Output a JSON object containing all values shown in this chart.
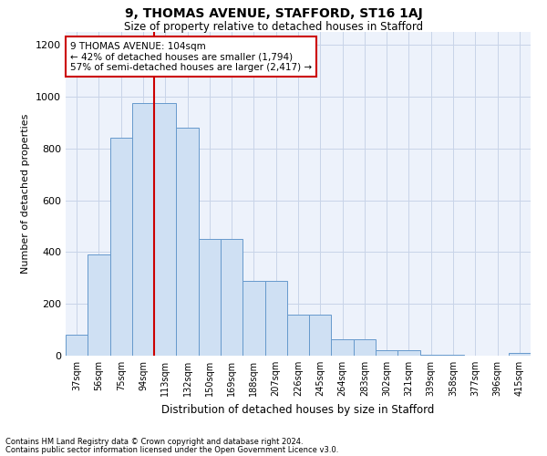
{
  "title1": "9, THOMAS AVENUE, STAFFORD, ST16 1AJ",
  "title2": "Size of property relative to detached houses in Stafford",
  "xlabel": "Distribution of detached houses by size in Stafford",
  "ylabel": "Number of detached properties",
  "categories": [
    "37sqm",
    "56sqm",
    "75sqm",
    "94sqm",
    "113sqm",
    "132sqm",
    "150sqm",
    "169sqm",
    "188sqm",
    "207sqm",
    "226sqm",
    "245sqm",
    "264sqm",
    "283sqm",
    "302sqm",
    "321sqm",
    "339sqm",
    "358sqm",
    "377sqm",
    "396sqm",
    "415sqm"
  ],
  "values": [
    80,
    390,
    840,
    975,
    975,
    880,
    450,
    450,
    290,
    290,
    160,
    160,
    65,
    65,
    20,
    20,
    5,
    5,
    0,
    0,
    10
  ],
  "bar_color": "#cfe0f3",
  "bar_edge_color": "#6699cc",
  "red_line_x": 3.5,
  "annotation_text": "9 THOMAS AVENUE: 104sqm\n← 42% of detached houses are smaller (1,794)\n57% of semi-detached houses are larger (2,417) →",
  "annotation_box_color": "white",
  "annotation_box_edge_color": "#cc0000",
  "red_line_color": "#cc0000",
  "grid_color": "#c8d4e8",
  "background_color": "#edf2fb",
  "ylim": [
    0,
    1250
  ],
  "yticks": [
    0,
    200,
    400,
    600,
    800,
    1000,
    1200
  ],
  "footnote1": "Contains HM Land Registry data © Crown copyright and database right 2024.",
  "footnote2": "Contains public sector information licensed under the Open Government Licence v3.0."
}
